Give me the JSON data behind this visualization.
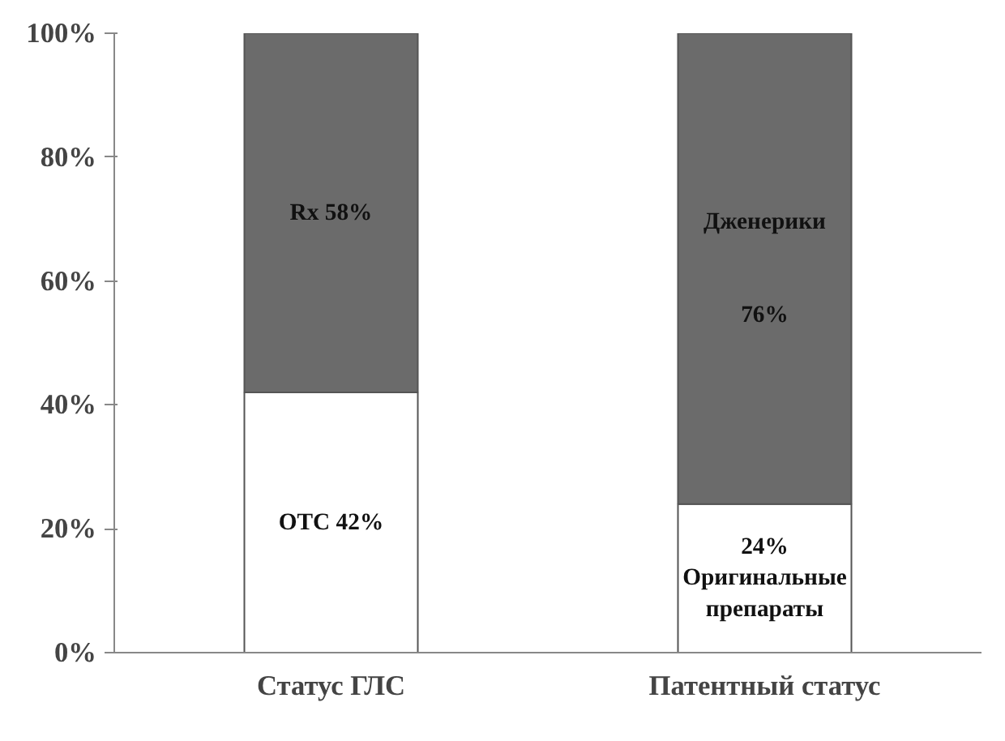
{
  "chart_data": {
    "type": "bar",
    "stacked": true,
    "categories": [
      "Статус ГЛС",
      "Патентный статус"
    ],
    "series": [
      {
        "color": "#ffffff",
        "values": [
          42,
          24
        ],
        "value_labels": [
          "OTC 42%",
          "24%\nОригинальные\nпрепараты"
        ]
      },
      {
        "color": "#6b6b6b",
        "values": [
          58,
          76
        ],
        "value_labels": [
          "Rx 58%",
          "Дженерики\n\n\n76%"
        ]
      }
    ],
    "ylim": [
      0,
      100
    ],
    "yticks": [
      {
        "value": 0,
        "label": "0%"
      },
      {
        "value": 20,
        "label": "20%"
      },
      {
        "value": 40,
        "label": "40%"
      },
      {
        "value": 60,
        "label": "60%"
      },
      {
        "value": 80,
        "label": "80%"
      },
      {
        "value": 100,
        "label": "100%"
      }
    ],
    "grid": false
  }
}
